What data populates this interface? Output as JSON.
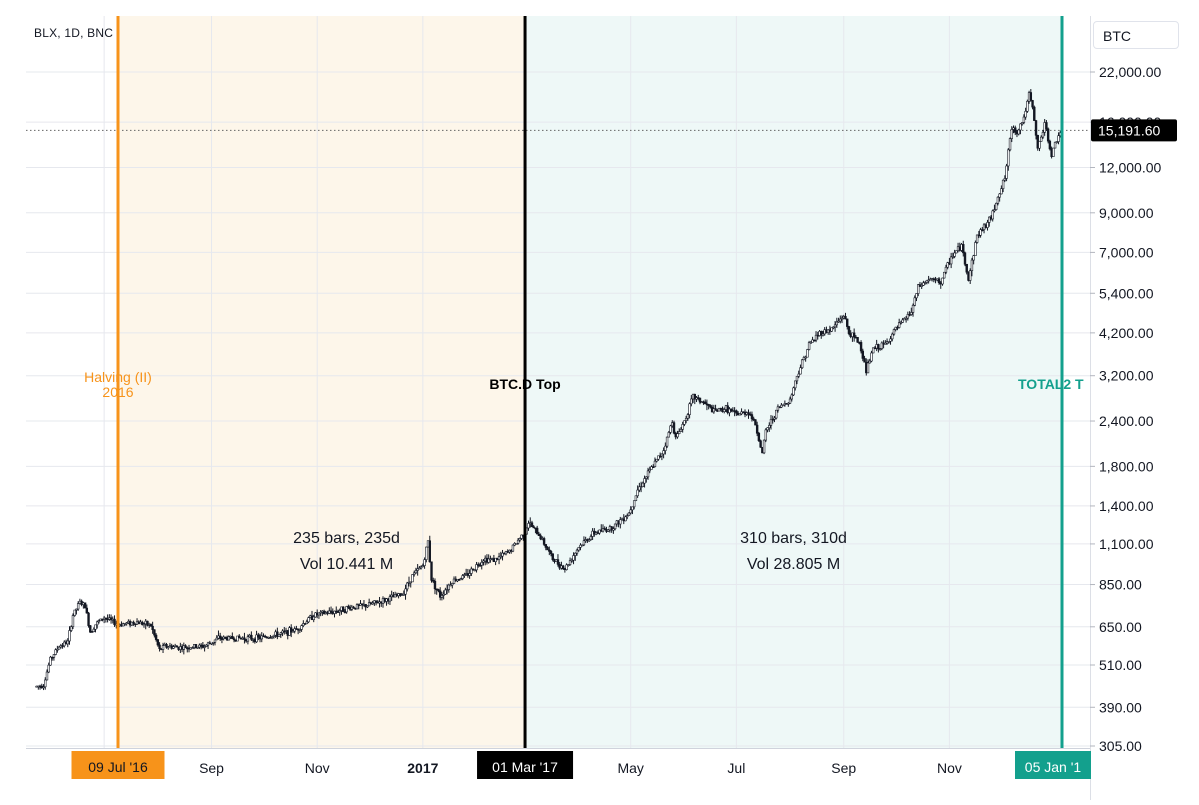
{
  "header": {
    "symbol": "BLX, 1D, BNC",
    "currency": "BTC"
  },
  "colors": {
    "halving": "#f7931a",
    "btcd": "#000000",
    "total2": "#13a08d",
    "up": "#131722",
    "zone1_fill": "#fdf6ea",
    "zone2_fill": "#eef8f7"
  },
  "chart_data": {
    "type": "candlestick",
    "y_scale": "log",
    "ylim": [
      305,
      26000
    ],
    "xlim": [
      "2016-05-23",
      "2018-01-12"
    ],
    "y_ticks": [
      "22,000.00",
      "16,000.00",
      "12,000.00",
      "9,000.00",
      "7,000.00",
      "5,400.00",
      "4,200.00",
      "3,200.00",
      "2,400.00",
      "1,800.00",
      "1,400.00",
      "1,100.00",
      "850.00",
      "650.00",
      "510.00",
      "390.00",
      "305.00"
    ],
    "x_ticks": [
      {
        "label": "Sep",
        "date": "2016-09-01",
        "bold": false
      },
      {
        "label": "Nov",
        "date": "2016-11-01",
        "bold": false
      },
      {
        "label": "2017",
        "date": "2017-01-01",
        "bold": true
      },
      {
        "label": "May",
        "date": "2017-05-01",
        "bold": false
      },
      {
        "label": "Jul",
        "date": "2017-07-01",
        "bold": false
      },
      {
        "label": "Sep",
        "date": "2017-09-01",
        "bold": false
      },
      {
        "label": "Nov",
        "date": "2017-11-01",
        "bold": false
      }
    ],
    "current_price": {
      "label": "15,191.60",
      "value": 15191.6
    },
    "markers": [
      {
        "date": "2016-07-09",
        "top_label": "Halving (II)",
        "top_label2": "2016",
        "axis_label": "09 Jul '16",
        "color": "#f7931a"
      },
      {
        "date": "2017-03-01",
        "top_label": "BTC.D Top",
        "top_label2": "",
        "axis_label": "01 Mar '17",
        "color": "#000000"
      },
      {
        "date": "2018-01-05",
        "top_label": "TOTAL2 T",
        "top_label2": "",
        "axis_label": "05 Jan '1",
        "color": "#13a08d"
      }
    ],
    "ranges": [
      {
        "start": "2016-07-09",
        "end": "2017-03-01",
        "line1": "235 bars, 235d",
        "line2": "Vol 10.441 M"
      },
      {
        "start": "2017-03-01",
        "end": "2018-01-05",
        "line1": "310 bars, 310d",
        "line2": "Vol 28.805 M"
      }
    ],
    "price_path": [
      {
        "date": "2016-05-23",
        "value": 445
      },
      {
        "date": "2016-05-27",
        "value": 450
      },
      {
        "date": "2016-05-31",
        "value": 530
      },
      {
        "date": "2016-06-05",
        "value": 575
      },
      {
        "date": "2016-06-10",
        "value": 590
      },
      {
        "date": "2016-06-13",
        "value": 700
      },
      {
        "date": "2016-06-17",
        "value": 760
      },
      {
        "date": "2016-06-20",
        "value": 740
      },
      {
        "date": "2016-06-23",
        "value": 630
      },
      {
        "date": "2016-06-26",
        "value": 660
      },
      {
        "date": "2016-07-01",
        "value": 690
      },
      {
        "date": "2016-07-09",
        "value": 660
      },
      {
        "date": "2016-07-20",
        "value": 670
      },
      {
        "date": "2016-07-28",
        "value": 655
      },
      {
        "date": "2016-08-02",
        "value": 560
      },
      {
        "date": "2016-08-05",
        "value": 575
      },
      {
        "date": "2016-08-15",
        "value": 570
      },
      {
        "date": "2016-08-28",
        "value": 575
      },
      {
        "date": "2016-09-05",
        "value": 605
      },
      {
        "date": "2016-09-15",
        "value": 605
      },
      {
        "date": "2016-09-28",
        "value": 605
      },
      {
        "date": "2016-10-10",
        "value": 620
      },
      {
        "date": "2016-10-20",
        "value": 640
      },
      {
        "date": "2016-10-30",
        "value": 700
      },
      {
        "date": "2016-11-10",
        "value": 715
      },
      {
        "date": "2016-11-20",
        "value": 735
      },
      {
        "date": "2016-11-30",
        "value": 745
      },
      {
        "date": "2016-12-10",
        "value": 770
      },
      {
        "date": "2016-12-20",
        "value": 800
      },
      {
        "date": "2016-12-26",
        "value": 900
      },
      {
        "date": "2017-01-01",
        "value": 960
      },
      {
        "date": "2017-01-04",
        "value": 1120
      },
      {
        "date": "2017-01-06",
        "value": 880
      },
      {
        "date": "2017-01-11",
        "value": 790
      },
      {
        "date": "2017-01-18",
        "value": 870
      },
      {
        "date": "2017-01-26",
        "value": 900
      },
      {
        "date": "2017-02-05",
        "value": 1000
      },
      {
        "date": "2017-02-12",
        "value": 995
      },
      {
        "date": "2017-02-20",
        "value": 1050
      },
      {
        "date": "2017-03-01",
        "value": 1190
      },
      {
        "date": "2017-03-03",
        "value": 1260
      },
      {
        "date": "2017-03-10",
        "value": 1150
      },
      {
        "date": "2017-03-17",
        "value": 1000
      },
      {
        "date": "2017-03-24",
        "value": 940
      },
      {
        "date": "2017-04-01",
        "value": 1080
      },
      {
        "date": "2017-04-10",
        "value": 1180
      },
      {
        "date": "2017-04-20",
        "value": 1220
      },
      {
        "date": "2017-04-30",
        "value": 1340
      },
      {
        "date": "2017-05-05",
        "value": 1550
      },
      {
        "date": "2017-05-12",
        "value": 1750
      },
      {
        "date": "2017-05-20",
        "value": 2000
      },
      {
        "date": "2017-05-25",
        "value": 2400
      },
      {
        "date": "2017-05-27",
        "value": 2150
      },
      {
        "date": "2017-06-01",
        "value": 2400
      },
      {
        "date": "2017-06-06",
        "value": 2800
      },
      {
        "date": "2017-06-12",
        "value": 2700
      },
      {
        "date": "2017-06-18",
        "value": 2550
      },
      {
        "date": "2017-06-25",
        "value": 2600
      },
      {
        "date": "2017-07-01",
        "value": 2500
      },
      {
        "date": "2017-07-08",
        "value": 2550
      },
      {
        "date": "2017-07-12",
        "value": 2350
      },
      {
        "date": "2017-07-16",
        "value": 1950
      },
      {
        "date": "2017-07-18",
        "value": 2250
      },
      {
        "date": "2017-07-25",
        "value": 2600
      },
      {
        "date": "2017-08-01",
        "value": 2750
      },
      {
        "date": "2017-08-05",
        "value": 3200
      },
      {
        "date": "2017-08-12",
        "value": 3900
      },
      {
        "date": "2017-08-18",
        "value": 4200
      },
      {
        "date": "2017-08-25",
        "value": 4300
      },
      {
        "date": "2017-09-01",
        "value": 4700
      },
      {
        "date": "2017-09-04",
        "value": 4200
      },
      {
        "date": "2017-09-10",
        "value": 3950
      },
      {
        "date": "2017-09-14",
        "value": 3300
      },
      {
        "date": "2017-09-18",
        "value": 3800
      },
      {
        "date": "2017-09-25",
        "value": 3900
      },
      {
        "date": "2017-10-01",
        "value": 4300
      },
      {
        "date": "2017-10-10",
        "value": 4800
      },
      {
        "date": "2017-10-14",
        "value": 5600
      },
      {
        "date": "2017-10-20",
        "value": 5900
      },
      {
        "date": "2017-10-27",
        "value": 5800
      },
      {
        "date": "2017-11-02",
        "value": 6800
      },
      {
        "date": "2017-11-08",
        "value": 7300
      },
      {
        "date": "2017-11-12",
        "value": 5900
      },
      {
        "date": "2017-11-17",
        "value": 7800
      },
      {
        "date": "2017-11-25",
        "value": 8700
      },
      {
        "date": "2017-11-29",
        "value": 10000
      },
      {
        "date": "2017-12-03",
        "value": 11200
      },
      {
        "date": "2017-12-07",
        "value": 15500
      },
      {
        "date": "2017-12-10",
        "value": 15000
      },
      {
        "date": "2017-12-14",
        "value": 16500
      },
      {
        "date": "2017-12-17",
        "value": 19000
      },
      {
        "date": "2017-12-19",
        "value": 17500
      },
      {
        "date": "2017-12-22",
        "value": 13500
      },
      {
        "date": "2017-12-26",
        "value": 15800
      },
      {
        "date": "2017-12-30",
        "value": 13000
      },
      {
        "date": "2018-01-03",
        "value": 14800
      },
      {
        "date": "2018-01-05",
        "value": 15191.6
      }
    ]
  }
}
